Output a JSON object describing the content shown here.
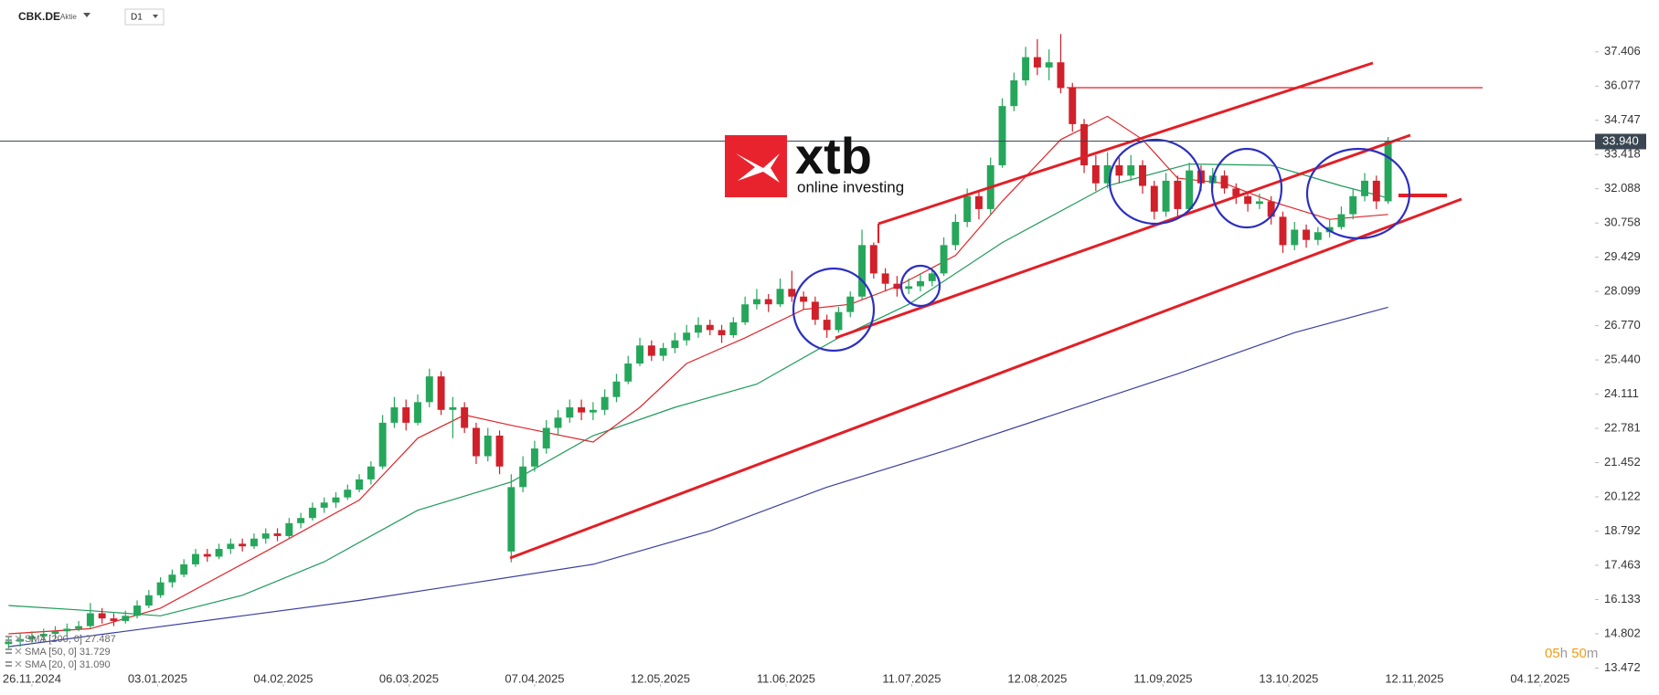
{
  "header": {
    "symbol": "CBK.DE",
    "kind": "Aktie",
    "interval": "D1"
  },
  "logo": {
    "brand": "xtb",
    "tagline": "online investing"
  },
  "countdown": {
    "hours": "05",
    "h": "h",
    "minutes": "50",
    "m": "m"
  },
  "chart_data": {
    "type": "candlestick",
    "up_color": "#26a65b",
    "down_color": "#d0202a",
    "xlim": [
      -0.73,
      135.7
    ],
    "ylim": [
      13.17,
      39.42
    ],
    "xticks": [
      {
        "value": 2,
        "label": "26.11.2024"
      },
      {
        "value": 12.75,
        "label": "03.01.2025"
      },
      {
        "value": 23.5,
        "label": "04.02.2025"
      },
      {
        "value": 34.25,
        "label": "06.03.2025"
      },
      {
        "value": 45,
        "label": "07.04.2025"
      },
      {
        "value": 55.75,
        "label": "12.05.2025"
      },
      {
        "value": 66.5,
        "label": "11.06.2025"
      },
      {
        "value": 77.25,
        "label": "11.07.2025"
      },
      {
        "value": 88,
        "label": "12.08.2025"
      },
      {
        "value": 98.75,
        "label": "11.09.2025"
      },
      {
        "value": 109.5,
        "label": "13.10.2025"
      },
      {
        "value": 120.25,
        "label": "12.11.2025"
      },
      {
        "value": 131,
        "label": "04.12.2025"
      }
    ],
    "yticks": [
      13.472,
      14.802,
      16.133,
      17.463,
      18.792,
      20.122,
      21.452,
      22.781,
      24.111,
      {
        "value": 25.44,
        "label": "25.440"
      },
      {
        "value": 26.77,
        "label": "26.770"
      },
      28.099,
      29.429,
      30.758,
      32.088,
      33.418,
      34.747,
      36.077,
      37.406
    ],
    "last_price": {
      "value": 33.94,
      "label": "33.940"
    },
    "ohlc": [
      [
        14.4,
        14.7,
        14.2,
        14.5
      ],
      [
        14.5,
        14.8,
        14.3,
        14.6
      ],
      [
        14.6,
        14.9,
        14.4,
        14.7
      ],
      [
        14.7,
        15.0,
        14.5,
        14.8
      ],
      [
        14.8,
        15.1,
        14.6,
        14.9
      ],
      [
        14.9,
        15.2,
        14.7,
        15.0
      ],
      [
        15.0,
        15.3,
        14.9,
        15.1
      ],
      [
        15.1,
        16.0,
        15.0,
        15.6
      ],
      [
        15.6,
        15.8,
        15.2,
        15.4
      ],
      [
        15.4,
        15.6,
        15.1,
        15.3
      ],
      [
        15.3,
        15.7,
        15.2,
        15.5
      ],
      [
        15.5,
        16.1,
        15.4,
        15.9
      ],
      [
        15.9,
        16.5,
        15.8,
        16.3
      ],
      [
        16.3,
        17.0,
        16.2,
        16.8
      ],
      [
        16.8,
        17.3,
        16.6,
        17.1
      ],
      [
        17.1,
        17.7,
        17.0,
        17.5
      ],
      [
        17.5,
        18.1,
        17.4,
        17.9
      ],
      [
        17.9,
        18.1,
        17.6,
        17.8
      ],
      [
        17.8,
        18.3,
        17.7,
        18.1
      ],
      [
        18.1,
        18.5,
        17.9,
        18.3
      ],
      [
        18.3,
        18.5,
        18.0,
        18.2
      ],
      [
        18.2,
        18.7,
        18.1,
        18.5
      ],
      [
        18.5,
        18.9,
        18.3,
        18.7
      ],
      [
        18.7,
        18.9,
        18.4,
        18.6
      ],
      [
        18.6,
        19.3,
        18.5,
        19.1
      ],
      [
        19.1,
        19.5,
        18.9,
        19.3
      ],
      [
        19.3,
        19.9,
        19.2,
        19.7
      ],
      [
        19.7,
        20.1,
        19.5,
        19.9
      ],
      [
        19.9,
        20.3,
        19.7,
        20.1
      ],
      [
        20.1,
        20.6,
        20.0,
        20.4
      ],
      [
        20.4,
        21.0,
        20.3,
        20.8
      ],
      [
        20.8,
        21.5,
        20.6,
        21.3
      ],
      [
        21.3,
        23.3,
        21.2,
        23.0
      ],
      [
        23.0,
        24.0,
        22.8,
        23.6
      ],
      [
        23.6,
        23.9,
        22.7,
        23.0
      ],
      [
        23.0,
        24.1,
        22.9,
        23.8
      ],
      [
        23.8,
        25.1,
        23.6,
        24.8
      ],
      [
        24.8,
        25.0,
        23.3,
        23.5
      ],
      [
        23.5,
        24.0,
        22.4,
        23.6
      ],
      [
        23.6,
        23.8,
        22.6,
        22.8
      ],
      [
        22.8,
        23.0,
        21.4,
        21.7
      ],
      [
        21.7,
        22.8,
        21.5,
        22.5
      ],
      [
        22.5,
        22.7,
        21.0,
        21.3
      ],
      [
        18.0,
        21.0,
        17.58,
        20.5
      ],
      [
        20.5,
        21.7,
        20.3,
        21.3
      ],
      [
        21.3,
        22.3,
        21.1,
        22.0
      ],
      [
        22.0,
        23.1,
        21.8,
        22.8
      ],
      [
        22.8,
        23.5,
        22.5,
        23.2
      ],
      [
        23.2,
        23.9,
        23.0,
        23.6
      ],
      [
        23.6,
        23.9,
        23.1,
        23.4
      ],
      [
        23.4,
        23.8,
        23.1,
        23.5
      ],
      [
        23.5,
        24.3,
        23.3,
        24.0
      ],
      [
        24.0,
        24.9,
        23.8,
        24.6
      ],
      [
        24.6,
        25.6,
        24.5,
        25.3
      ],
      [
        25.3,
        26.3,
        25.2,
        26.0
      ],
      [
        26.0,
        26.2,
        25.4,
        25.6
      ],
      [
        25.6,
        26.1,
        25.4,
        25.9
      ],
      [
        25.9,
        26.5,
        25.7,
        26.2
      ],
      [
        26.2,
        26.8,
        26.0,
        26.5
      ],
      [
        26.5,
        27.1,
        26.3,
        26.8
      ],
      [
        26.8,
        27.0,
        26.4,
        26.6
      ],
      [
        26.6,
        26.8,
        26.1,
        26.4
      ],
      [
        26.4,
        27.1,
        26.3,
        26.9
      ],
      [
        26.9,
        27.9,
        26.8,
        27.6
      ],
      [
        27.6,
        28.2,
        27.4,
        27.8
      ],
      [
        27.8,
        28.0,
        27.3,
        27.6
      ],
      [
        27.6,
        28.6,
        27.5,
        28.2
      ],
      [
        28.2,
        28.9,
        27.7,
        27.9
      ],
      [
        27.9,
        28.1,
        27.4,
        27.7
      ],
      [
        27.7,
        27.9,
        26.8,
        27.0
      ],
      [
        27.0,
        27.2,
        26.3,
        26.6
      ],
      [
        26.6,
        27.5,
        26.5,
        27.3
      ],
      [
        27.3,
        28.1,
        27.1,
        27.9
      ],
      [
        27.9,
        30.5,
        27.8,
        29.9
      ],
      [
        29.9,
        30.0,
        28.6,
        28.8
      ],
      [
        28.8,
        29.0,
        28.1,
        28.4
      ],
      [
        28.4,
        28.7,
        27.9,
        28.2
      ],
      [
        28.2,
        28.6,
        28.0,
        28.3
      ],
      [
        28.3,
        28.8,
        28.1,
        28.5
      ],
      [
        28.5,
        29.0,
        28.3,
        28.8
      ],
      [
        28.8,
        30.2,
        28.7,
        29.9
      ],
      [
        29.9,
        31.1,
        29.7,
        30.8
      ],
      [
        30.8,
        32.1,
        30.6,
        31.8
      ],
      [
        31.8,
        32.0,
        30.9,
        31.3
      ],
      [
        31.3,
        33.3,
        31.1,
        33.0
      ],
      [
        33.0,
        35.6,
        32.9,
        35.3
      ],
      [
        35.3,
        36.6,
        35.1,
        36.3
      ],
      [
        36.3,
        37.6,
        36.1,
        37.2
      ],
      [
        37.2,
        37.9,
        36.5,
        36.8
      ],
      [
        36.8,
        37.5,
        36.3,
        37.0
      ],
      [
        37.0,
        38.1,
        35.8,
        36.0
      ],
      [
        36.0,
        36.2,
        34.3,
        34.6
      ],
      [
        34.6,
        34.8,
        32.7,
        33.0
      ],
      [
        33.0,
        33.4,
        32.0,
        32.3
      ],
      [
        32.3,
        33.5,
        32.1,
        33.0
      ],
      [
        33.0,
        33.3,
        32.3,
        32.6
      ],
      [
        32.6,
        33.4,
        32.4,
        33.0
      ],
      [
        33.0,
        33.2,
        31.9,
        32.2
      ],
      [
        32.2,
        32.4,
        30.9,
        31.2
      ],
      [
        31.2,
        32.7,
        31.0,
        32.4
      ],
      [
        32.4,
        32.6,
        30.9,
        31.3
      ],
      [
        31.3,
        33.1,
        31.2,
        32.8
      ],
      [
        32.8,
        33.0,
        32.0,
        32.3
      ],
      [
        32.3,
        32.9,
        32.1,
        32.6
      ],
      [
        32.6,
        32.8,
        31.9,
        32.1
      ],
      [
        32.1,
        32.3,
        31.5,
        31.8
      ],
      [
        31.8,
        32.0,
        31.2,
        31.5
      ],
      [
        31.5,
        31.9,
        31.3,
        31.6
      ],
      [
        31.6,
        31.8,
        30.7,
        31.0
      ],
      [
        31.0,
        31.2,
        29.6,
        29.9
      ],
      [
        29.9,
        30.8,
        29.7,
        30.5
      ],
      [
        30.5,
        30.7,
        29.8,
        30.1
      ],
      [
        30.1,
        30.6,
        29.9,
        30.4
      ],
      [
        30.4,
        30.9,
        30.2,
        30.6
      ],
      [
        30.6,
        31.4,
        30.5,
        31.1
      ],
      [
        31.1,
        32.1,
        30.9,
        31.8
      ],
      [
        31.8,
        32.7,
        31.6,
        32.4
      ],
      [
        32.4,
        32.6,
        31.3,
        31.6
      ],
      [
        31.6,
        34.1,
        31.5,
        33.94
      ]
    ],
    "indicators": [
      {
        "label": "SMA [200, 0] 27.487",
        "color": "#3a3f9e",
        "x": [
          0,
          10,
          20,
          30,
          40,
          50,
          60,
          70,
          80,
          90,
          100,
          110,
          118
        ],
        "values": [
          14.3,
          14.9,
          15.5,
          16.1,
          16.8,
          17.5,
          18.8,
          20.5,
          21.9,
          23.4,
          24.9,
          26.5,
          27.487
        ]
      },
      {
        "label": "SMA [50, 0] 31.729",
        "color": "#1e9a5a",
        "x": [
          0,
          7,
          13,
          20,
          27,
          35,
          43,
          50,
          57,
          64,
          71,
          77,
          85,
          94,
          101,
          108,
          114,
          118
        ],
        "values": [
          15.9,
          15.7,
          15.5,
          16.3,
          17.6,
          19.6,
          20.7,
          22.5,
          23.6,
          24.5,
          26.3,
          27.6,
          30.0,
          32.2,
          33.05,
          33.0,
          32.2,
          31.729
        ]
      },
      {
        "label": "SMA [20, 0] 31.090",
        "color": "#e0262b",
        "x": [
          0,
          7,
          13,
          22,
          30,
          35,
          39,
          43,
          50,
          54,
          58,
          63,
          68,
          72,
          76,
          81,
          85,
          90,
          94,
          97,
          100,
          104,
          108,
          113,
          118
        ],
        "values": [
          14.8,
          15.0,
          15.8,
          18.0,
          20.0,
          22.4,
          23.3,
          22.9,
          22.25,
          23.6,
          25.3,
          26.3,
          27.4,
          27.6,
          28.3,
          29.5,
          31.6,
          34.0,
          34.9,
          34.0,
          32.5,
          32.3,
          31.6,
          30.9,
          31.09
        ]
      }
    ]
  }
}
